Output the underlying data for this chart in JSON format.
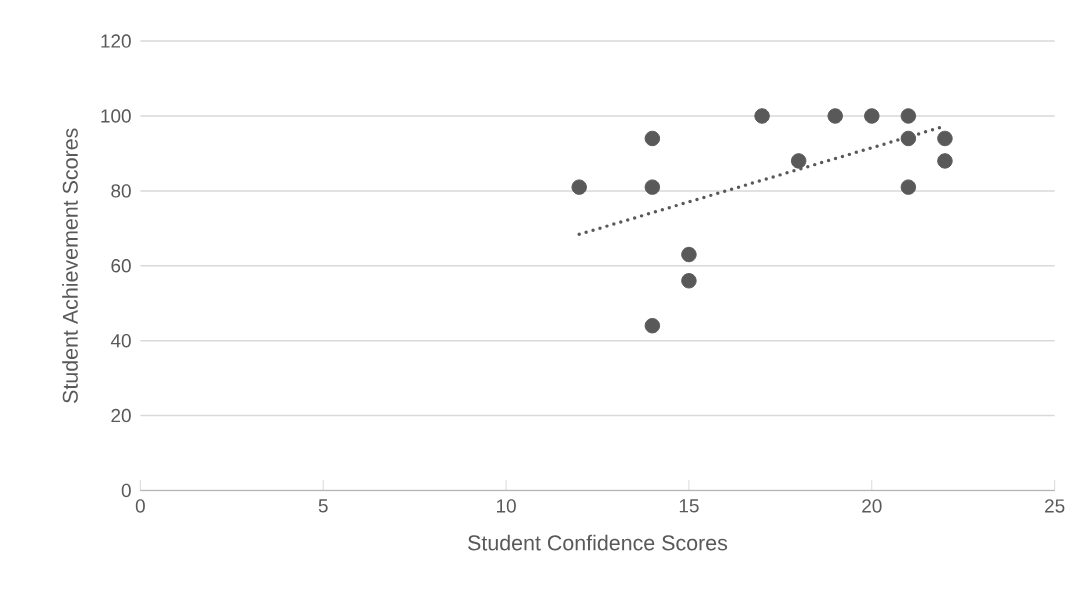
{
  "chart_data": {
    "type": "scatter",
    "xlabel": "Student Confidence Scores",
    "ylabel": "Student Achievement Scores",
    "xlim": [
      0,
      25
    ],
    "xticks": [
      0,
      5,
      10,
      15,
      20,
      25
    ],
    "ylim": [
      0,
      120
    ],
    "yticks": [
      0,
      20,
      40,
      60,
      80,
      100,
      120
    ],
    "grid": "y",
    "marker": "circle",
    "series": [
      {
        "color": "#595959",
        "x": [
          12,
          14,
          14,
          14,
          15,
          15,
          17,
          18,
          19,
          20,
          21,
          21,
          21,
          22,
          22
        ],
        "values": [
          81,
          94,
          81,
          44,
          63,
          56,
          100,
          88,
          100,
          100,
          100,
          94,
          81,
          94,
          88
        ]
      },
      {
        "type": "line",
        "color": "#595959",
        "marker": "none",
        "line_style": "dotted",
        "x": [
          12,
          22
        ],
        "values": [
          68.4,
          97.3
        ]
      }
    ]
  }
}
